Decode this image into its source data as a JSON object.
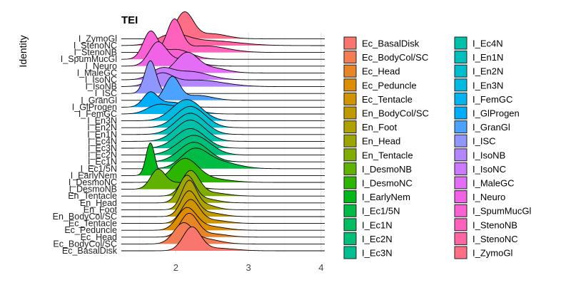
{
  "chart_data": {
    "type": "ridgeline",
    "title": "TEI",
    "ylabel": "Identity",
    "xlabel": "",
    "xlim": [
      1.25,
      4.05
    ],
    "x_ticks": [
      2,
      3,
      4
    ],
    "grid": true,
    "legend_position": "right",
    "categories": [
      "Ec_BasalDisk",
      "Ec_BodyCol/SC",
      "Ec_Head",
      "Ec_Peduncle",
      "Ec_Tentacle",
      "En_BodyCol/SC",
      "En_Foot",
      "En_Head",
      "En_Tentacle",
      "I_DesmoNB",
      "I_DesmoNC",
      "I_EarlyNem",
      "I_Ec1/5N",
      "I_Ec1N",
      "I_Ec2N",
      "I_Ec3N",
      "I_Ec4N",
      "I_En1N",
      "I_En2N",
      "I_En3N",
      "I_FemGC",
      "I_GlProgen",
      "I_GranGl",
      "I_ISC",
      "I_IsoNB",
      "I_IsoNC",
      "I_MaleGC",
      "I_Neuro",
      "I_SpumMucGl",
      "I_StenoNB",
      "I_StenoNC",
      "I_ZymoGl"
    ],
    "colors": [
      "#F8766D",
      "#F27D52",
      "#E88526",
      "#DE8C00",
      "#D09400",
      "#C09B00",
      "#AFA100",
      "#9AA700",
      "#81AD00",
      "#5FB300",
      "#2DB600",
      "#00B81A",
      "#00BB45",
      "#00BD60",
      "#00BF7A",
      "#00C091",
      "#00C0A7",
      "#00BFBC",
      "#00BDD0",
      "#00BAE1",
      "#00B4F0",
      "#00ACFC",
      "#4BA3FF",
      "#8F97FF",
      "#B385FF",
      "#CD79FF",
      "#E36EF5",
      "#F063E7",
      "#FA62D4",
      "#FF62BC",
      "#FF66A1",
      "#FE6E85"
    ],
    "series": [
      {
        "peaks": [
          [
            2.22,
            0.7,
            0.12
          ],
          [
            2.55,
            0.08,
            0.25
          ]
        ]
      },
      {
        "peaks": [
          [
            2.1,
            0.6,
            0.13
          ],
          [
            2.4,
            0.15,
            0.2
          ]
        ]
      },
      {
        "peaks": [
          [
            2.18,
            0.7,
            0.12
          ],
          [
            2.5,
            0.1,
            0.2
          ]
        ]
      },
      {
        "peaks": [
          [
            2.15,
            0.65,
            0.13
          ],
          [
            2.45,
            0.12,
            0.22
          ]
        ]
      },
      {
        "peaks": [
          [
            2.2,
            0.7,
            0.12
          ],
          [
            2.5,
            0.1,
            0.2
          ]
        ]
      },
      {
        "peaks": [
          [
            2.18,
            0.75,
            0.11
          ],
          [
            2.45,
            0.12,
            0.18
          ]
        ]
      },
      {
        "peaks": [
          [
            2.18,
            0.85,
            0.1
          ],
          [
            2.4,
            0.15,
            0.15
          ]
        ]
      },
      {
        "peaks": [
          [
            2.15,
            0.8,
            0.11
          ],
          [
            2.4,
            0.12,
            0.18
          ]
        ]
      },
      {
        "peaks": [
          [
            2.2,
            0.75,
            0.12
          ],
          [
            2.5,
            0.1,
            0.2
          ]
        ]
      },
      {
        "peaks": [
          [
            1.75,
            0.55,
            0.1
          ],
          [
            2.05,
            0.2,
            0.2
          ]
        ]
      },
      {
        "peaks": [
          [
            2.12,
            0.7,
            0.18
          ],
          [
            2.5,
            0.1,
            0.25
          ]
        ]
      },
      {
        "peaks": [
          [
            1.65,
            1.0,
            0.06
          ]
        ]
      },
      {
        "peaks": [
          [
            2.25,
            0.55,
            0.18
          ],
          [
            2.6,
            0.2,
            0.25
          ]
        ]
      },
      {
        "peaks": [
          [
            2.25,
            0.6,
            0.2
          ]
        ]
      },
      {
        "peaks": [
          [
            2.25,
            0.6,
            0.22
          ]
        ]
      },
      {
        "peaks": [
          [
            2.2,
            0.6,
            0.2
          ]
        ]
      },
      {
        "peaks": [
          [
            2.2,
            0.65,
            0.2
          ]
        ]
      },
      {
        "peaks": [
          [
            2.2,
            0.65,
            0.2
          ]
        ]
      },
      {
        "peaks": [
          [
            2.2,
            0.65,
            0.2
          ]
        ]
      },
      {
        "peaks": [
          [
            2.15,
            0.65,
            0.2
          ]
        ]
      },
      {
        "peaks": [
          [
            1.75,
            0.25,
            0.15
          ],
          [
            2.1,
            0.2,
            0.2
          ]
        ]
      },
      {
        "peaks": [
          [
            1.65,
            0.45,
            0.1
          ],
          [
            1.95,
            0.15,
            0.15
          ]
        ]
      },
      {
        "peaks": [
          [
            1.95,
            0.7,
            0.1
          ],
          [
            2.3,
            0.15,
            0.2
          ]
        ]
      },
      {
        "peaks": [
          [
            1.65,
            1.0,
            0.08
          ]
        ]
      },
      {
        "peaks": [
          [
            1.8,
            0.35,
            0.15
          ],
          [
            2.3,
            0.2,
            0.35
          ]
        ]
      },
      {
        "peaks": [
          [
            1.8,
            0.3,
            0.15
          ],
          [
            2.2,
            0.25,
            0.25
          ]
        ]
      },
      {
        "peaks": [
          [
            2.15,
            0.6,
            0.15
          ],
          [
            2.5,
            0.15,
            0.2
          ]
        ]
      },
      {
        "peaks": [
          [
            1.75,
            0.7,
            0.12
          ],
          [
            2.1,
            0.2,
            0.2
          ]
        ]
      },
      {
        "peaks": [
          [
            1.65,
            0.8,
            0.1
          ],
          [
            2.0,
            0.3,
            0.2
          ]
        ]
      },
      {
        "peaks": [
          [
            1.98,
            0.95,
            0.1
          ],
          [
            2.4,
            0.2,
            0.3
          ]
        ]
      },
      {
        "peaks": [
          [
            1.95,
            0.3,
            0.2
          ],
          [
            2.45,
            0.15,
            0.4
          ]
        ]
      },
      {
        "peaks": [
          [
            2.12,
            0.8,
            0.12
          ],
          [
            2.5,
            0.15,
            0.2
          ]
        ]
      }
    ]
  }
}
